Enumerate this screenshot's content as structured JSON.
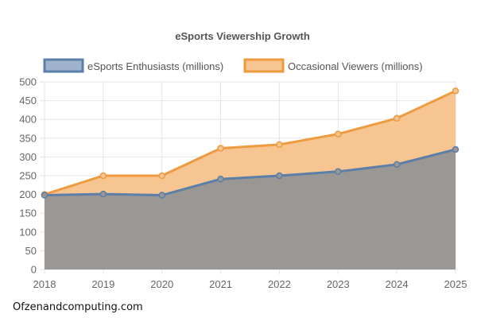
{
  "watermark": "Ofzenandcomputing.com",
  "colors": {
    "enthusiasts_line": "#5b7fa8",
    "enthusiasts_fill": "#9a9794",
    "enthusiasts_legend_fill": "#9fb3ce",
    "occasional_line": "#ee9a3e",
    "occasional_fill": "#f6c592"
  },
  "chart_data": {
    "type": "area",
    "title": "eSports Viewership Growth",
    "x": [
      "2018",
      "2019",
      "2020",
      "2021",
      "2022",
      "2023",
      "2024",
      "2025"
    ],
    "series": [
      {
        "name": "eSports Enthusiasts (millions)",
        "values": [
          198,
          201,
          198,
          241,
          250,
          261,
          280,
          320
        ]
      },
      {
        "name": "Occasional Viewers (millions)",
        "values": [
          200,
          250,
          250,
          323,
          333,
          361,
          403,
          476
        ]
      }
    ],
    "ylim": [
      0,
      500
    ],
    "yticks": [
      "0",
      "50",
      "100",
      "150",
      "200",
      "250",
      "300",
      "350",
      "400",
      "450",
      "500"
    ],
    "grid": true,
    "legend": "top"
  }
}
